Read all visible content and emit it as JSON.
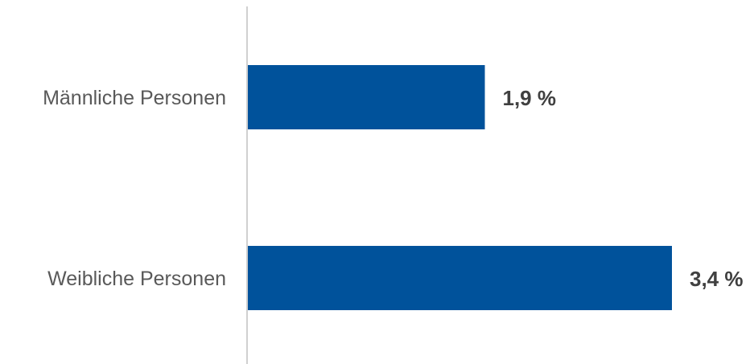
{
  "chart_data": {
    "type": "bar",
    "orientation": "horizontal",
    "categories": [
      "Männliche Personen",
      "Weibliche Personen"
    ],
    "values": [
      1.9,
      3.4
    ],
    "value_labels": [
      "1,9 %",
      "3,4 %"
    ],
    "unit": "%",
    "title": "",
    "xlabel": "",
    "ylabel": "",
    "xlim": [
      0,
      3.4
    ],
    "grid": false,
    "legend": "none",
    "bar_color": "#00529B",
    "axis_color": "#D0D0D0"
  }
}
